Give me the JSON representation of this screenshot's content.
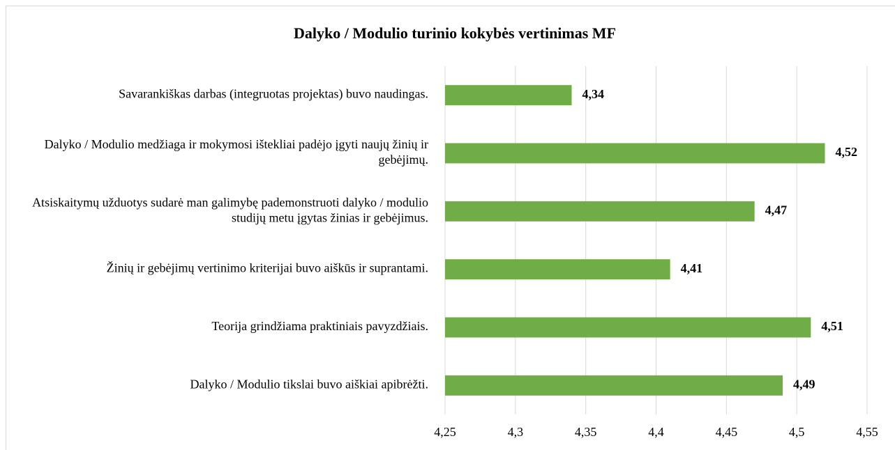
{
  "chart_data": {
    "type": "bar",
    "orientation": "horizontal",
    "title": "Dalyko / Modulio turinio kokybės vertinimas MF",
    "categories": [
      "Savarankiškas darbas (integruotas projektas) buvo naudingas.",
      "Dalyko / Modulio medžiaga ir mokymosi ištekliai padėjo įgyti naujų žinių ir gebėjimų.",
      "Atsiskaitymų užduotys sudarė man galimybę pademonstruoti dalyko / modulio studijų metu įgytas žinias ir gebėjimus.",
      "Žinių ir gebėjimų vertinimo kriterijai buvo aiškūs ir suprantami.",
      "Teorija grindžiama praktiniais pavyzdžiais.",
      "Dalyko / Modulio tikslai buvo aiškiai apibrėžti."
    ],
    "values": [
      4.34,
      4.52,
      4.47,
      4.41,
      4.51,
      4.49
    ],
    "value_labels": [
      "4,34",
      "4,52",
      "4,47",
      "4,41",
      "4,51",
      "4,49"
    ],
    "color": "#70ad47",
    "xlim": [
      4.25,
      4.55
    ],
    "xticks": [
      {
        "value": 4.25,
        "label": "4,25"
      },
      {
        "value": 4.3,
        "label": "4,3"
      },
      {
        "value": 4.35,
        "label": "4,35"
      },
      {
        "value": 4.4,
        "label": "4,4"
      },
      {
        "value": 4.45,
        "label": "4,45"
      },
      {
        "value": 4.5,
        "label": "4,5"
      },
      {
        "value": 4.55,
        "label": "4,55"
      }
    ],
    "grid": true
  }
}
